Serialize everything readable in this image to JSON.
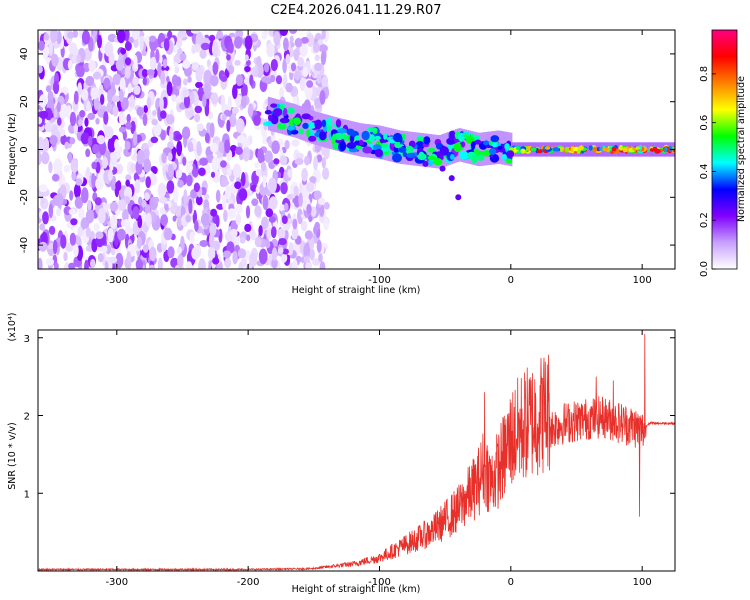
{
  "title": "C2E4.2026.041.11.29.R07",
  "chart_data": [
    {
      "type": "heatmap",
      "xlabel": "Height of straight line (km)",
      "ylabel": "Frequency (Hz)",
      "xlim": [
        -360,
        125
      ],
      "ylim": [
        -50,
        50
      ],
      "xticks": [
        "-300",
        "-200",
        "-100",
        "0",
        "100"
      ],
      "xtick_values": [
        -300,
        -200,
        -100,
        0,
        100
      ],
      "yticks": [
        "-40",
        "-20",
        "0",
        "20",
        "40"
      ],
      "ytick_values": [
        -40,
        -20,
        0,
        20,
        40
      ],
      "colorbar": {
        "label": "Normalized spectral amplitude",
        "range": [
          0,
          0.98
        ],
        "ticks": [
          "0.0",
          "0.2",
          "0.4",
          "0.6",
          "0.8"
        ],
        "tick_values": [
          0.0,
          0.2,
          0.4,
          0.6,
          0.8
        ],
        "colors": [
          "#ffffff",
          "#c8a0ff",
          "#8000ff",
          "#0000ff",
          "#00ffff",
          "#00ff00",
          "#ffff00",
          "#ff8000",
          "#ff0000",
          "#ff0080"
        ]
      },
      "features": {
        "noise_region_x": [
          -360,
          -140
        ],
        "signal_track": {
          "x": [
            -185,
            -165,
            -150,
            -130,
            -115,
            -100,
            -85,
            -70,
            -55,
            -40,
            -25,
            -10,
            0,
            25,
            50,
            75,
            100,
            125
          ],
          "y": [
            15,
            12,
            9,
            6,
            4,
            3,
            1,
            0,
            -1,
            2,
            0,
            1,
            0,
            0,
            0,
            0,
            0,
            0
          ]
        }
      }
    },
    {
      "type": "line",
      "xlabel": "Height of straight line (km)",
      "ylabel": "SNR (10 * v/v)",
      "y_multiplier": "(x10⁴)",
      "xlim": [
        -360,
        125
      ],
      "ylim": [
        0,
        3.1
      ],
      "xticks": [
        "-300",
        "-200",
        "-100",
        "0",
        "100"
      ],
      "xtick_values": [
        -300,
        -200,
        -100,
        0,
        100
      ],
      "yticks": [
        "1",
        "2",
        "3"
      ],
      "ytick_values": [
        1,
        2,
        3
      ],
      "series": [
        {
          "color": "#e8302a",
          "envelope_x": [
            -360,
            -200,
            -150,
            -120,
            -100,
            -80,
            -60,
            -40,
            -25,
            -20,
            -15,
            -5,
            0,
            10,
            25,
            40,
            55,
            70,
            85,
            95,
            100,
            105,
            125
          ],
          "envelope_y": [
            0.02,
            0.02,
            0.03,
            0.08,
            0.15,
            0.3,
            0.45,
            0.7,
            1.0,
            1.2,
            1.0,
            1.3,
            1.5,
            1.65,
            1.8,
            1.9,
            1.95,
            1.98,
            1.9,
            1.85,
            1.8,
            1.9,
            1.9
          ],
          "spikes": [
            {
              "x": -20,
              "y": 2.3
            },
            {
              "x": 102,
              "y": 3.05
            },
            {
              "x": 98,
              "y": 0.7
            },
            {
              "x": 65,
              "y": 2.5
            },
            {
              "x": 78,
              "y": 2.45
            }
          ]
        }
      ]
    }
  ]
}
